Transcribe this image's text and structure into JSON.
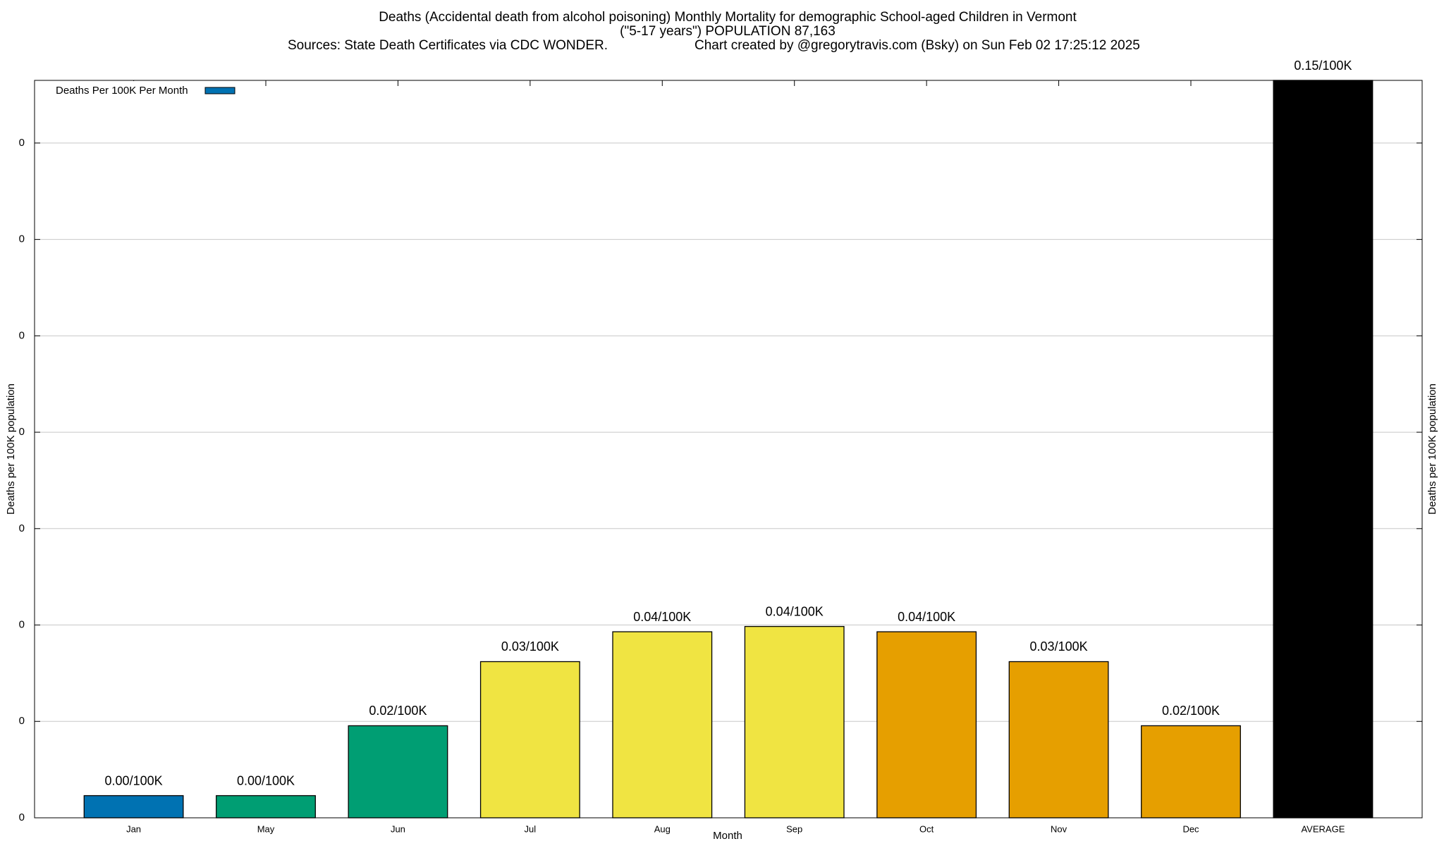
{
  "chart_data": {
    "type": "bar",
    "title": "Deaths (Accidental death from alcohol poisoning) Monthly Mortality for demographic School-aged Children in Vermont",
    "subtitle": "(\"5-17 years\") POPULATION 87,163",
    "sources": "Sources: State Death Certificates via CDC WONDER.",
    "credit": "Chart created by @gregorytravis.com (Bsky) on Sun Feb 02 17:25:12 2025",
    "x_label": "Month",
    "y_label": "Deaths per 100K population",
    "y2_label": "Deaths per 100K population",
    "categories": [
      "Jan",
      "May",
      "Jun",
      "Jul",
      "Aug",
      "Sep",
      "Oct",
      "Nov",
      "Dec",
      "AVERAGE"
    ],
    "series": [
      {
        "name": "Deaths Per 100K Per Month",
        "color": "#0072b2",
        "values": [
          0.0046,
          0.0046,
          0.0191,
          0.0324,
          0.0386,
          0.0397,
          0.0386,
          0.0324,
          0.0191,
          0.153
        ],
        "value_labels": [
          "0.00/100K",
          "0.00/100K",
          "0.02/100K",
          "0.03/100K",
          "0.04/100K",
          "0.04/100K",
          "0.04/100K",
          "0.03/100K",
          "0.02/100K",
          "0.15/100K"
        ],
        "colors": [
          "#0072b2",
          "#009e73",
          "#009e73",
          "#f0e442",
          "#f0e442",
          "#f0e442",
          "#e69f00",
          "#e69f00",
          "#e69f00",
          "#000000"
        ]
      }
    ],
    "ylim": [
      0,
      0.153
    ],
    "yticks": [
      {
        "value": 0,
        "label": "0"
      },
      {
        "value": 0.02,
        "label": "0"
      },
      {
        "value": 0.04,
        "label": "0"
      },
      {
        "value": 0.06,
        "label": "0"
      },
      {
        "value": 0.08,
        "label": "0"
      },
      {
        "value": 0.1,
        "label": "0"
      },
      {
        "value": 0.12,
        "label": "0"
      },
      {
        "value": 0.14,
        "label": "0"
      }
    ],
    "grid": true,
    "legend": "top-left"
  }
}
